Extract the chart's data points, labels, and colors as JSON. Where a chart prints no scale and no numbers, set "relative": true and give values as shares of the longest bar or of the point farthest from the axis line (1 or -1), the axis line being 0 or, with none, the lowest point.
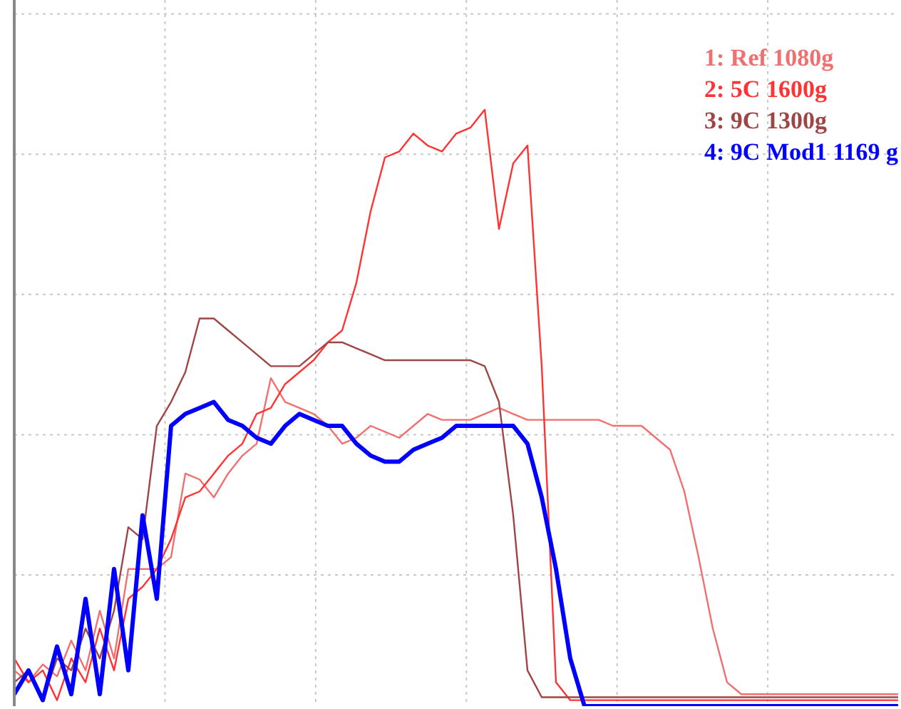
{
  "chart_data": {
    "type": "line",
    "relative": true,
    "grid": true,
    "legend": "top right",
    "marker": "none",
    "line_style": "solid",
    "categories": [
      null,
      null,
      null,
      null,
      null,
      null,
      null,
      null,
      null,
      null,
      null,
      null,
      null,
      null,
      null,
      null,
      null,
      null,
      null,
      null,
      null,
      null,
      null,
      null,
      null,
      null,
      null,
      null,
      null,
      null,
      null,
      null,
      null,
      null,
      null,
      null,
      null,
      null,
      null,
      null,
      null,
      null,
      null,
      null,
      null,
      null,
      null,
      null,
      null,
      null,
      null,
      null,
      null,
      null,
      null,
      null,
      null,
      null,
      null,
      null,
      null,
      null,
      null
    ],
    "series": [
      {
        "name": "1: Ref 1080g",
        "color": "#f07070",
        "values": [
          0.06,
          0.04,
          0.07,
          0.05,
          0.11,
          0.06,
          0.16,
          0.08,
          0.23,
          0.23,
          0.23,
          0.25,
          0.39,
          0.38,
          0.35,
          0.39,
          0.42,
          0.44,
          0.55,
          0.51,
          0.5,
          0.49,
          0.47,
          0.44,
          0.45,
          0.47,
          0.46,
          0.45,
          0.47,
          0.49,
          0.48,
          0.48,
          0.48,
          0.49,
          0.5,
          0.49,
          0.48,
          0.48,
          0.48,
          0.48,
          0.48,
          0.48,
          0.47,
          0.47,
          0.47,
          0.45,
          0.43,
          0.36,
          0.25,
          0.13,
          0.04,
          0.02,
          0.02,
          0.02,
          0.02,
          0.02,
          0.02,
          0.02,
          0.02,
          0.02,
          0.02,
          0.02,
          0.02
        ]
      },
      {
        "name": "2: 5C 1600g",
        "color": "#ff3333",
        "values": [
          0.08,
          0.04,
          0.06,
          0.01,
          0.08,
          0.04,
          0.13,
          0.06,
          0.18,
          0.2,
          0.23,
          0.28,
          0.35,
          0.36,
          0.39,
          0.42,
          0.44,
          0.49,
          0.5,
          0.54,
          0.56,
          0.58,
          0.61,
          0.63,
          0.71,
          0.83,
          0.92,
          0.93,
          0.96,
          0.94,
          0.93,
          0.96,
          0.97,
          1.0,
          0.8,
          0.91,
          0.94,
          0.57,
          0.04,
          0.01,
          0.01,
          0.01,
          0.01,
          0.01,
          0.01,
          0.01,
          0.01,
          0.01,
          0.01,
          0.01,
          0.01,
          0.01,
          0.01,
          0.01,
          0.01,
          0.01,
          0.01,
          0.01,
          0.01,
          0.01,
          0.01,
          0.01,
          0.01
        ]
      },
      {
        "name": "3: 9C 1300g",
        "color": "#a04545",
        "values": [
          0.04,
          0.06,
          0.01,
          0.08,
          0.06,
          0.13,
          0.08,
          0.16,
          0.3,
          0.28,
          0.47,
          0.51,
          0.56,
          0.65,
          0.65,
          0.63,
          0.61,
          0.59,
          0.57,
          0.57,
          0.57,
          0.59,
          0.61,
          0.61,
          0.6,
          0.59,
          0.58,
          0.58,
          0.58,
          0.58,
          0.58,
          0.58,
          0.58,
          0.57,
          0.51,
          0.32,
          0.06,
          0.015,
          0.015,
          0.015,
          0.015,
          0.015,
          0.015,
          0.015,
          0.015,
          0.015,
          0.015,
          0.015,
          0.015,
          0.015,
          0.015,
          0.015,
          0.015,
          0.015,
          0.015,
          0.015,
          0.015,
          0.015,
          0.015,
          0.015,
          0.015,
          0.015,
          0.015
        ]
      },
      {
        "name": "4: 9C Mod1 1169 g",
        "color": "#0000ff",
        "values": [
          0.02,
          0.06,
          0.01,
          0.1,
          0.02,
          0.18,
          0.02,
          0.23,
          0.06,
          0.32,
          0.18,
          0.47,
          0.49,
          0.5,
          0.51,
          0.48,
          0.47,
          0.45,
          0.44,
          0.47,
          0.49,
          0.48,
          0.47,
          0.47,
          0.44,
          0.42,
          0.41,
          0.41,
          0.43,
          0.44,
          0.45,
          0.47,
          0.47,
          0.47,
          0.47,
          0.47,
          0.44,
          0.35,
          0.23,
          0.08,
          0.0,
          0.0,
          0.0,
          0.0,
          0.0,
          0.0,
          0.0,
          0.0,
          0.0,
          0.0,
          0.0,
          0.0,
          0.0,
          0.0,
          0.0,
          0.0,
          0.0,
          0.0,
          0.0,
          0.0,
          0.0,
          0.0,
          0.0
        ]
      }
    ]
  }
}
